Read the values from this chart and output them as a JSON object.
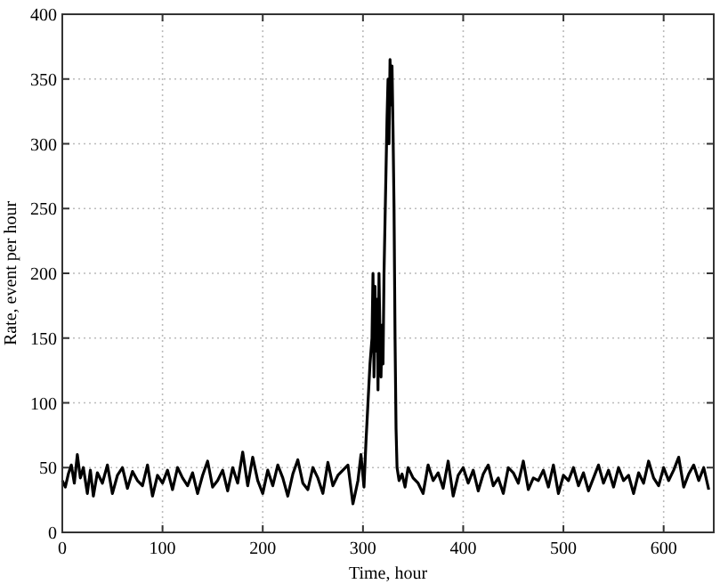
{
  "chart_data": {
    "type": "line",
    "xlabel": "Time, hour",
    "ylabel": "Rate, event per hour",
    "xlim": [
      0,
      650
    ],
    "ylim": [
      0,
      400
    ],
    "xticks": [
      0,
      100,
      200,
      300,
      400,
      500,
      600
    ],
    "yticks": [
      0,
      50,
      100,
      150,
      200,
      250,
      300,
      350,
      400
    ],
    "grid": true,
    "line_style": "solid",
    "series": [
      {
        "color": "#000000",
        "x": [
          0,
          3,
          6,
          9,
          12,
          15,
          18,
          21,
          25,
          28,
          31,
          35,
          40,
          45,
          50,
          55,
          60,
          65,
          70,
          75,
          80,
          85,
          90,
          95,
          100,
          105,
          110,
          115,
          120,
          125,
          130,
          135,
          140,
          145,
          150,
          155,
          160,
          165,
          170,
          175,
          180,
          185,
          190,
          195,
          200,
          205,
          210,
          215,
          220,
          225,
          230,
          235,
          240,
          245,
          250,
          255,
          260,
          265,
          270,
          275,
          280,
          285,
          290,
          295,
          298,
          301,
          303,
          305,
          307,
          309,
          310,
          311,
          312,
          313,
          314,
          315,
          316,
          317,
          318,
          319,
          320,
          321,
          322,
          323,
          324,
          325,
          326,
          327,
          328,
          329,
          330,
          331,
          332,
          333,
          334,
          336,
          339,
          342,
          345,
          350,
          355,
          360,
          365,
          370,
          375,
          380,
          385,
          390,
          395,
          400,
          405,
          410,
          415,
          420,
          425,
          430,
          435,
          440,
          445,
          450,
          455,
          460,
          465,
          470,
          475,
          480,
          485,
          490,
          495,
          500,
          505,
          510,
          515,
          520,
          525,
          530,
          535,
          540,
          545,
          550,
          555,
          560,
          565,
          570,
          575,
          580,
          585,
          590,
          595,
          600,
          605,
          610,
          615,
          620,
          625,
          630,
          635,
          640,
          645
        ],
        "values": [
          40,
          35,
          45,
          52,
          38,
          60,
          42,
          50,
          30,
          48,
          28,
          46,
          38,
          52,
          30,
          44,
          50,
          34,
          47,
          40,
          36,
          52,
          28,
          44,
          38,
          48,
          33,
          50,
          42,
          36,
          46,
          30,
          44,
          55,
          35,
          40,
          48,
          32,
          50,
          38,
          62,
          36,
          58,
          40,
          30,
          48,
          36,
          52,
          42,
          28,
          45,
          56,
          38,
          33,
          50,
          42,
          30,
          54,
          36,
          44,
          48,
          52,
          22,
          40,
          60,
          35,
          70,
          100,
          130,
          150,
          200,
          120,
          190,
          140,
          180,
          110,
          200,
          150,
          120,
          160,
          130,
          200,
          240,
          280,
          320,
          350,
          300,
          365,
          330,
          360,
          310,
          250,
          150,
          80,
          50,
          40,
          45,
          35,
          50,
          42,
          38,
          30,
          52,
          40,
          46,
          34,
          55,
          28,
          44,
          50,
          38,
          48,
          32,
          45,
          52,
          36,
          42,
          30,
          50,
          46,
          38,
          55,
          33,
          42,
          40,
          48,
          35,
          52,
          30,
          44,
          40,
          50,
          36,
          46,
          32,
          42,
          52,
          38,
          48,
          35,
          50,
          40,
          44,
          30,
          46,
          38,
          55,
          42,
          36,
          50,
          40,
          48,
          58,
          35,
          45,
          52,
          40,
          50,
          33
        ]
      }
    ]
  }
}
